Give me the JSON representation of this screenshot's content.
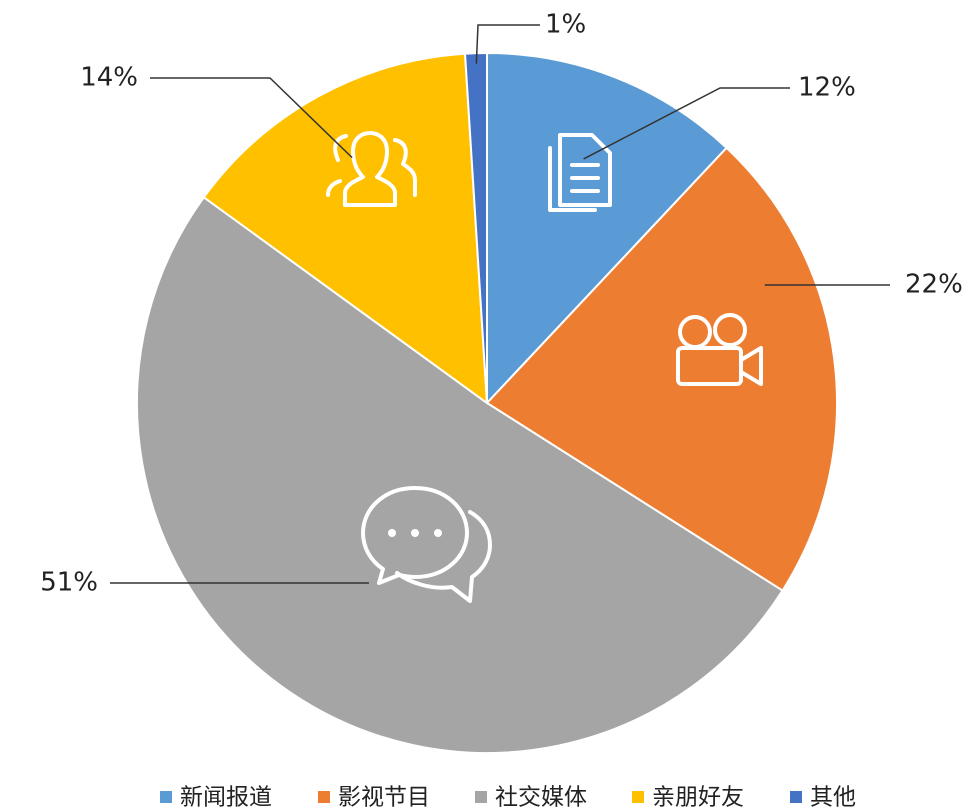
{
  "chart_data": {
    "type": "pie",
    "categories": [
      "新闻报道",
      "影视节目",
      "社交媒体",
      "亲朋好友",
      "其他"
    ],
    "values": [
      12,
      22,
      51,
      14,
      1
    ],
    "value_labels": [
      "12%",
      "22%",
      "51%",
      "14%",
      "1%"
    ],
    "colors": [
      "#5b9bd5",
      "#ed7d31",
      "#a5a5a5",
      "#ffc000",
      "#4472c4"
    ],
    "legend": "bottom"
  }
}
